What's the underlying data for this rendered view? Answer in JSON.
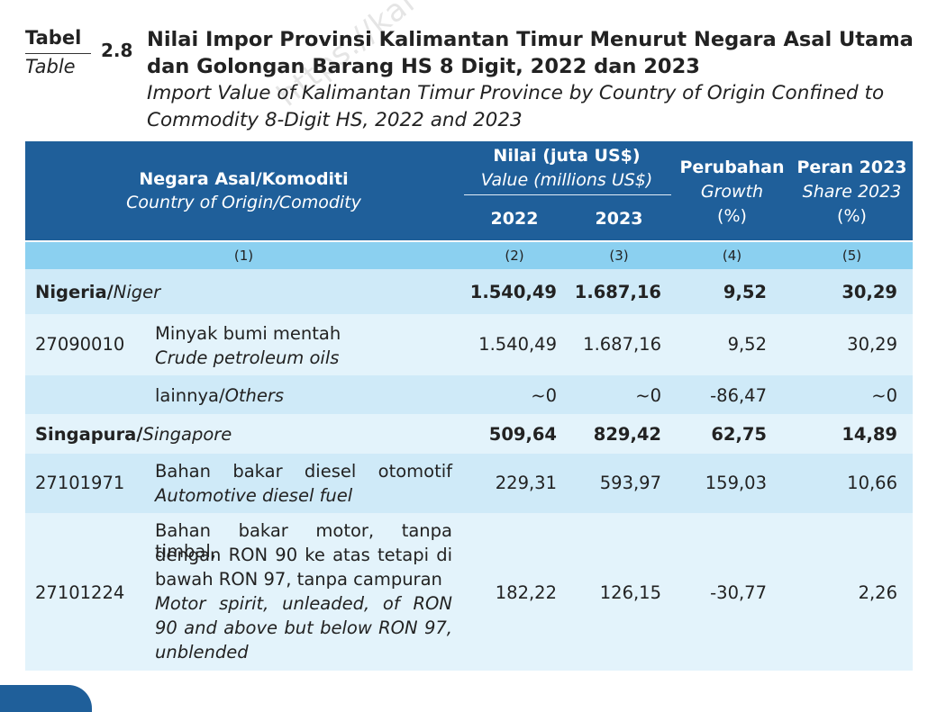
{
  "title": {
    "label_id": "Tabel",
    "label_en": "Table",
    "number": "2.8",
    "heading_id_line1": "Nilai Impor Provinsi Kalimantan Timur Menurut Negara Asal Utama",
    "heading_id_line2": "dan Golongan Barang HS 8 Digit, 2022 dan 2023",
    "heading_en_line1": "Import Value of Kalimantan Timur Province by Country of Origin Confined to",
    "heading_en_line2": "Commodity 8-Digit HS, 2022 and 2023",
    "watermark": "https://kal"
  },
  "header": {
    "country_id": "Negara Asal/Komoditi",
    "country_en": "Country of Origin/Comodity",
    "value_id": "Nilai (juta US$)",
    "value_en": "Value (millions US$)",
    "year1": "2022",
    "year2": "2023",
    "growth_id": "Perubahan",
    "growth_en": "Growth",
    "growth_unit": "(%)",
    "share_id": "Peran 2023",
    "share_en": "Share 2023",
    "share_unit": "(%)",
    "col_numbers": [
      "(1)",
      "(2)",
      "(3)",
      "(4)",
      "(5)"
    ]
  },
  "rows": {
    "nigeria": {
      "name_id": "Nigeria/",
      "name_en": "Niger",
      "v2022": "1.540,49",
      "v2023": "1.687,16",
      "growth": "9,52",
      "share": "30,29"
    },
    "crude": {
      "code": "27090010",
      "desc_id": "Minyak bumi mentah",
      "desc_en": "Crude petroleum oils",
      "v2022": "1.540,49",
      "v2023": "1.687,16",
      "growth": "9,52",
      "share": "30,29"
    },
    "others": {
      "desc_id": "lainnya/",
      "desc_en": "Others",
      "v2022": "~0",
      "v2023": "~0",
      "growth": "-86,47",
      "share": "~0"
    },
    "singapore": {
      "name_id": "Singapura/",
      "name_en": "Singapore",
      "v2022": "509,64",
      "v2023": "829,42",
      "growth": "62,75",
      "share": "14,89"
    },
    "diesel": {
      "code": "27101971",
      "desc_id": "Bahan bakar diesel otomotif",
      "desc_en": "Automotive diesel fuel",
      "v2022": "229,31",
      "v2023": "593,97",
      "growth": "159,03",
      "share": "10,66"
    },
    "motor": {
      "code": "27101224",
      "desc_id_1": "Bahan bakar motor, tanpa timbal,",
      "desc_id_2": "dengan RON 90 ke atas tetapi di",
      "desc_id_3": "bawah RON 97, tanpa campuran",
      "desc_en_1": "Motor spirit, unleaded, of RON",
      "desc_en_2": "90 and above but below RON 97,",
      "desc_en_3": "unblended",
      "v2022": "182,22",
      "v2023": "126,15",
      "growth": "-30,77",
      "share": "2,26"
    }
  }
}
